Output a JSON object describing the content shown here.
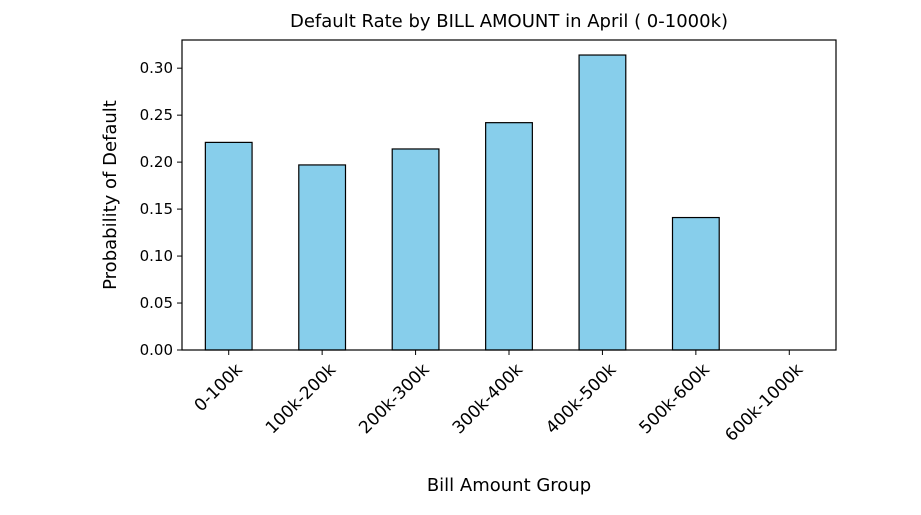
{
  "chart_data": {
    "type": "bar",
    "title": "Default Rate by BILL AMOUNT in April ( 0-1000k)",
    "xlabel": "Bill Amount Group",
    "ylabel": "Probability of Default",
    "categories": [
      "0-100k",
      "100k-200k",
      "200k-300k",
      "300k-400k",
      "400k-500k",
      "500k-600k",
      "600k-1000k"
    ],
    "values": [
      0.221,
      0.197,
      0.214,
      0.242,
      0.314,
      0.141,
      0.0
    ],
    "ylim": [
      0,
      0.33
    ],
    "yticks": [
      0.0,
      0.05,
      0.1,
      0.15,
      0.2,
      0.25,
      0.3
    ],
    "ytick_labels": [
      "0.00",
      "0.05",
      "0.10",
      "0.15",
      "0.20",
      "0.25",
      "0.30"
    ],
    "bar_color": "#87CEEB",
    "edge_color": "#000000",
    "grid": false,
    "legend": "none"
  }
}
